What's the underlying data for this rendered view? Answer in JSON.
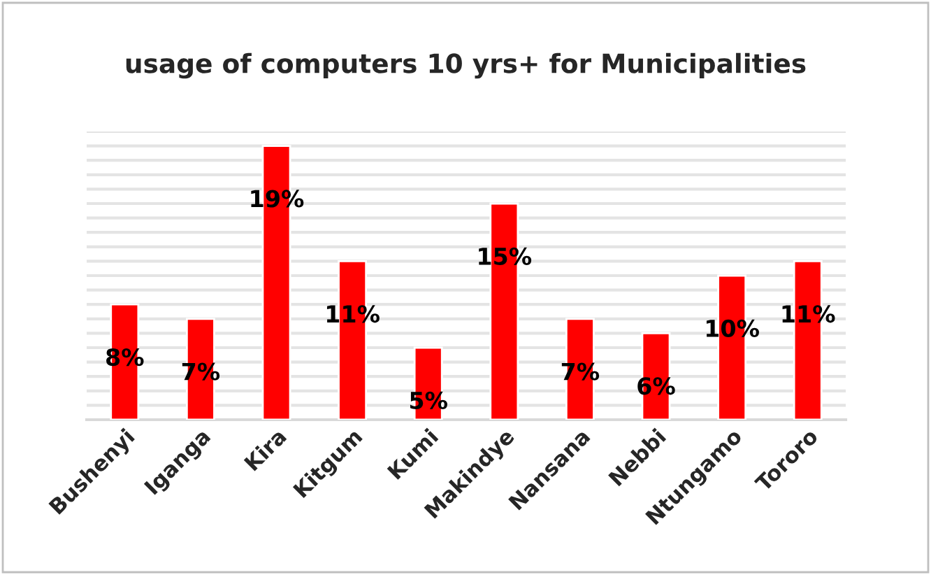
{
  "chart_data": {
    "type": "bar",
    "title": "usage of computers 10 yrs+ for Municipalities",
    "categories": [
      "Bushenyi",
      "Iganga",
      "Kira",
      "Kitgum",
      "Kumi",
      "Makindye",
      "Nansana",
      "Nebbi",
      "Ntungamo",
      "Tororo"
    ],
    "values": [
      8,
      7,
      19,
      11,
      5,
      15,
      7,
      6,
      10,
      11
    ],
    "value_labels": [
      "8%",
      "7%",
      "19%",
      "11%",
      "5%",
      "15%",
      "7%",
      "6%",
      "10%",
      "11%"
    ],
    "color": "#ff0000",
    "ylim": [
      0,
      20
    ],
    "yticks": [
      {
        "value": 0,
        "label": null
      },
      {
        "value": 1,
        "label": null
      },
      {
        "value": 2,
        "label": null
      },
      {
        "value": 3,
        "label": null
      },
      {
        "value": 4,
        "label": null
      },
      {
        "value": 5,
        "label": null
      },
      {
        "value": 6,
        "label": null
      },
      {
        "value": 7,
        "label": null
      },
      {
        "value": 8,
        "label": null
      },
      {
        "value": 9,
        "label": null
      },
      {
        "value": 10,
        "label": null
      },
      {
        "value": 11,
        "label": null
      },
      {
        "value": 12,
        "label": null
      },
      {
        "value": 13,
        "label": null
      },
      {
        "value": 14,
        "label": null
      },
      {
        "value": 15,
        "label": null
      },
      {
        "value": 16,
        "label": null
      },
      {
        "value": 17,
        "label": null
      },
      {
        "value": 18,
        "label": null
      },
      {
        "value": 19,
        "label": null
      },
      {
        "value": 20,
        "label": null
      }
    ],
    "grid": "y",
    "tick_labels": "x",
    "legend": false
  }
}
